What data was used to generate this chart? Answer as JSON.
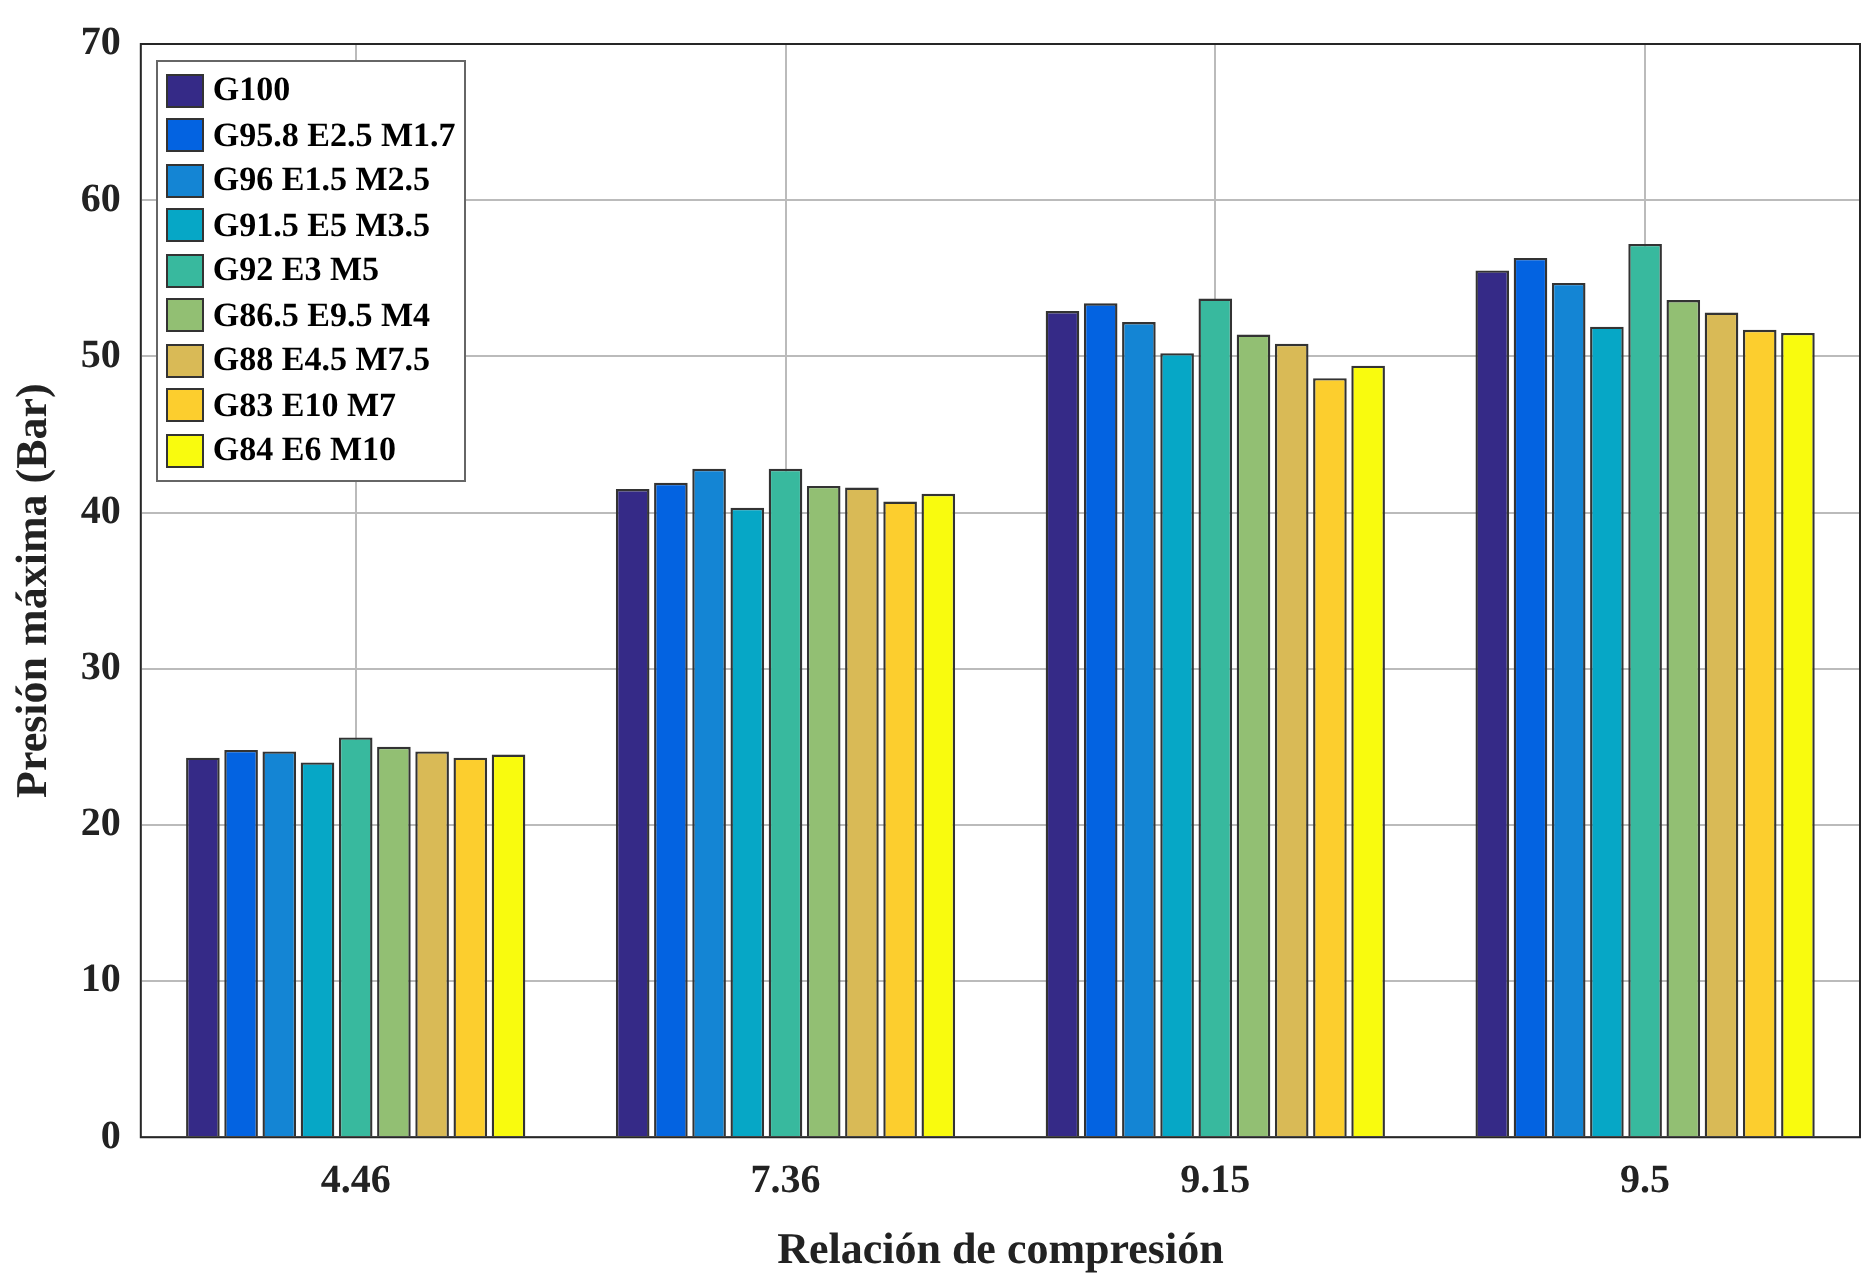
{
  "chart_data": {
    "type": "bar",
    "xlabel": "Relación de compresión",
    "ylabel": "Presión máxima (Bar)",
    "categories": [
      "4.46",
      "7.36",
      "9.15",
      "9.5"
    ],
    "series": [
      {
        "name": "G100",
        "color": "#352a87",
        "values": [
          24.3,
          41.5,
          52.9,
          55.5
        ]
      },
      {
        "name": "G95.8 E2.5 M1.7",
        "color": "#0363e1",
        "values": [
          24.8,
          41.9,
          53.4,
          56.3
        ]
      },
      {
        "name": "G96 E1.5 M2.5",
        "color": "#1485d4",
        "values": [
          24.7,
          42.8,
          52.2,
          54.7
        ]
      },
      {
        "name": "G91.5 E5 M3.5",
        "color": "#06a7c6",
        "values": [
          24.0,
          40.3,
          50.2,
          51.9
        ]
      },
      {
        "name": "G92 E3 M5",
        "color": "#38b99e",
        "values": [
          25.6,
          42.8,
          53.7,
          57.2
        ]
      },
      {
        "name": "G86.5 E9.5 M4",
        "color": "#92bf73",
        "values": [
          25.0,
          41.7,
          51.4,
          53.6
        ]
      },
      {
        "name": "G88 E4.5 M7.5",
        "color": "#d9ba56",
        "values": [
          24.7,
          41.6,
          50.8,
          52.8
        ]
      },
      {
        "name": "G83 E10 M7",
        "color": "#fcce2e",
        "values": [
          24.3,
          40.7,
          48.6,
          51.7
        ]
      },
      {
        "name": "G84 E6 M10",
        "color": "#f9fb0e",
        "values": [
          24.5,
          41.2,
          49.4,
          51.5
        ]
      }
    ],
    "ylim": [
      0,
      70
    ],
    "yticks": [
      0,
      10,
      20,
      30,
      40,
      50,
      60,
      70
    ],
    "grid": true,
    "legend": "top left"
  }
}
